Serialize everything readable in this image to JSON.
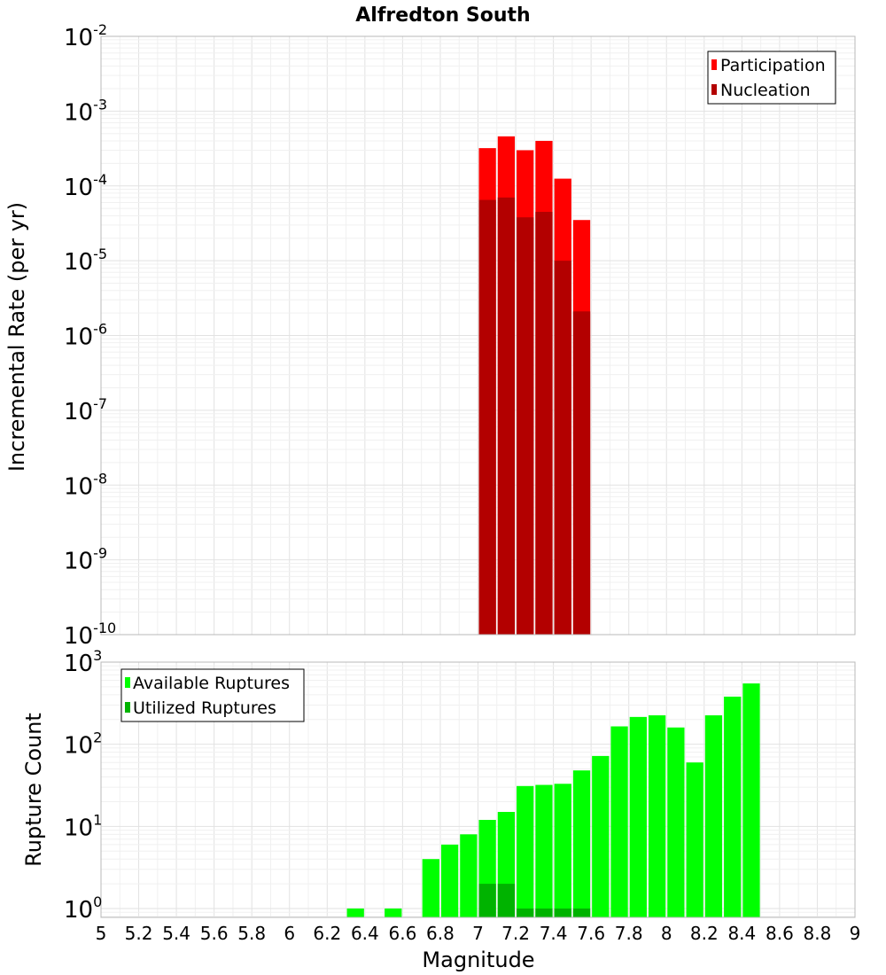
{
  "chart_data": [
    {
      "type": "bar",
      "title": "Alfredton South",
      "xlabel": "",
      "ylabel": "Incremental Rate (per yr)",
      "yscale": "log",
      "xlim": [
        5,
        9
      ],
      "ylim": [
        1e-10,
        0.01
      ],
      "grid": true,
      "legend_position": "top-right",
      "bar_width": 0.1,
      "y_ticks": [
        {
          "base": "10",
          "exp": "-2",
          "value": 0.01
        },
        {
          "base": "10",
          "exp": "-3",
          "value": 0.001
        },
        {
          "base": "10",
          "exp": "-4",
          "value": 0.0001
        },
        {
          "base": "10",
          "exp": "-5",
          "value": 1e-05
        },
        {
          "base": "10",
          "exp": "-6",
          "value": 1e-06
        },
        {
          "base": "10",
          "exp": "-7",
          "value": 1e-07
        },
        {
          "base": "10",
          "exp": "-8",
          "value": 1e-08
        },
        {
          "base": "10",
          "exp": "-9",
          "value": 1e-09
        },
        {
          "base": "10",
          "exp": "-10",
          "value": 1e-10
        }
      ],
      "series": [
        {
          "name": "Participation",
          "color": "#ff0000",
          "x": [
            7.05,
            7.15,
            7.25,
            7.35,
            7.45,
            7.55
          ],
          "values": [
            0.00032,
            0.00046,
            0.0003,
            0.0004,
            0.000125,
            3.5e-05
          ]
        },
        {
          "name": "Nucleation",
          "color": "#b30000",
          "x": [
            7.05,
            7.15,
            7.25,
            7.35,
            7.45,
            7.55
          ],
          "values": [
            6.5e-05,
            7e-05,
            3.8e-05,
            4.5e-05,
            1e-05,
            2.1e-06
          ]
        }
      ]
    },
    {
      "type": "bar",
      "title": "",
      "xlabel": "Magnitude",
      "ylabel": "Rupture Count",
      "yscale": "log",
      "xlim": [
        5,
        9
      ],
      "ylim": [
        0.78,
        1000
      ],
      "grid": true,
      "legend_position": "top-left",
      "bar_width": 0.1,
      "x_ticks": [
        "5",
        "5.2",
        "5.4",
        "5.6",
        "5.8",
        "6",
        "6.2",
        "6.4",
        "6.6",
        "6.8",
        "7",
        "7.2",
        "7.4",
        "7.6",
        "7.8",
        "8",
        "8.2",
        "8.4",
        "8.6",
        "8.8",
        "9"
      ],
      "y_ticks": [
        {
          "base": "10",
          "exp": "3",
          "value": 1000
        },
        {
          "base": "10",
          "exp": "2",
          "value": 100
        },
        {
          "base": "10",
          "exp": "1",
          "value": 10
        },
        {
          "base": "10",
          "exp": "0",
          "value": 1
        }
      ],
      "series": [
        {
          "name": "Available Ruptures",
          "color": "#00ff00",
          "x": [
            6.35,
            6.55,
            6.75,
            6.85,
            6.95,
            7.05,
            7.15,
            7.25,
            7.35,
            7.45,
            7.55,
            7.65,
            7.75,
            7.85,
            7.95,
            8.05,
            8.15,
            8.25,
            8.35,
            8.45
          ],
          "values": [
            1,
            1,
            4,
            6,
            8,
            12,
            15,
            31,
            32,
            33,
            48,
            72,
            165,
            215,
            225,
            160,
            60,
            225,
            380,
            550
          ]
        },
        {
          "name": "Utilized Ruptures",
          "color": "#00b300",
          "x": [
            7.05,
            7.15,
            7.25,
            7.35,
            7.45,
            7.55
          ],
          "values": [
            2,
            2,
            1,
            1,
            1,
            1
          ]
        }
      ]
    }
  ]
}
